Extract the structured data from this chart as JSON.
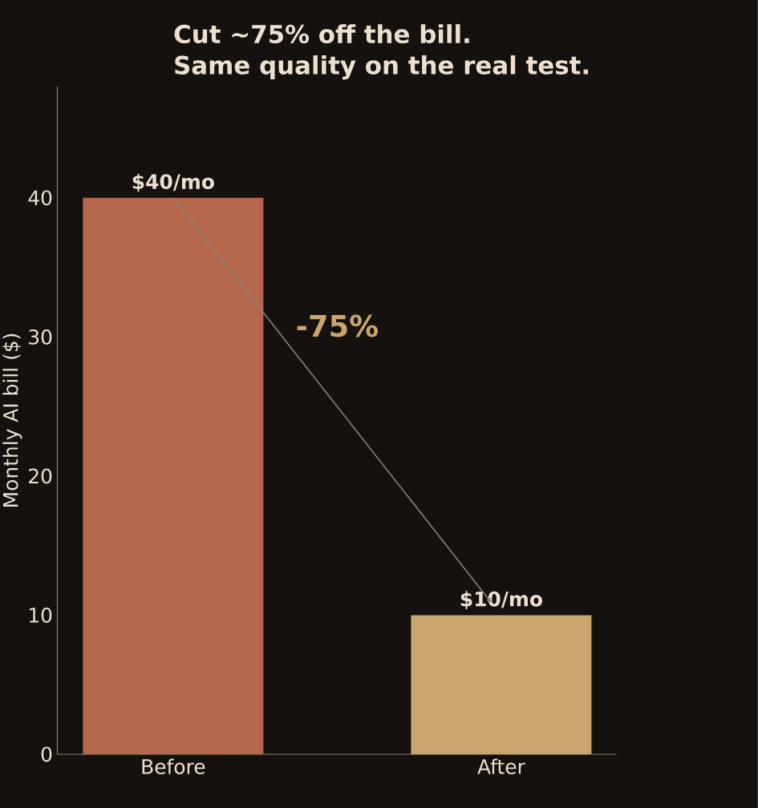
{
  "chart_data": {
    "type": "bar",
    "title": "Cut ~75% off the bill.\nSame quality on the real test.",
    "ylabel": "Monthly AI bill ($)",
    "categories": [
      "Before",
      "After"
    ],
    "values": [
      40,
      10
    ],
    "colors": [
      "#b5674c",
      "#c8a66d"
    ],
    "value_labels": [
      "$40/mo",
      "$10/mo"
    ],
    "ylim": [
      0,
      48
    ],
    "yticks": [
      0,
      10,
      20,
      30,
      40
    ],
    "annotations": [
      "-75%"
    ],
    "grid": false
  }
}
